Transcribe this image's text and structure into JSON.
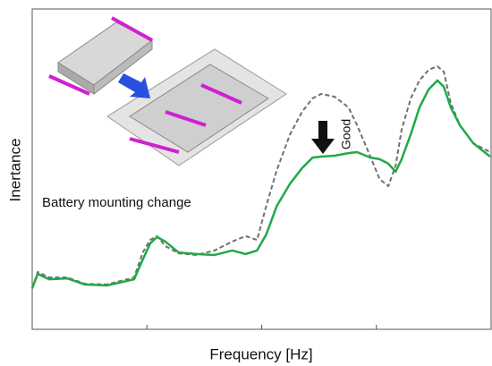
{
  "chart_data": {
    "type": "line",
    "xlabel": "Frequency [Hz]",
    "ylabel": "Inertance",
    "annotations": [
      "Battery mounting change",
      "Good"
    ],
    "x": [
      0,
      1.2,
      3.7,
      7.6,
      11.5,
      16.3,
      22.2,
      24.1,
      25.7,
      27.2,
      29.0,
      31.9,
      35.8,
      39.7,
      43.6,
      46.5,
      49.0,
      51.0,
      53.3,
      56.2,
      58.8,
      61.1,
      63.0,
      65.9,
      68.9,
      70.8,
      73.7,
      75.7,
      77.6,
      79.2,
      80.5,
      82.5,
      84.4,
      86.4,
      88.3,
      89.7,
      91.2,
      93.2,
      96.1,
      99.8
    ],
    "series": [
      {
        "color": "#22a84a",
        "dashed": false,
        "values": [
          12.8,
          17.3,
          15.6,
          15.9,
          14.0,
          13.7,
          15.6,
          21.8,
          26.8,
          28.8,
          27.4,
          24.0,
          23.5,
          23.2,
          24.6,
          23.5,
          24.6,
          29.6,
          38.5,
          45.5,
          50.3,
          53.6,
          53.9,
          54.2,
          55.0,
          55.3,
          53.6,
          53.1,
          51.7,
          49.2,
          53.1,
          60.9,
          69.3,
          74.9,
          77.7,
          75.7,
          69.3,
          63.7,
          58.1,
          53.9
        ]
      },
      {
        "color": "#707070",
        "dashed": true,
        "values": [
          12.8,
          17.9,
          16.2,
          16.2,
          14.2,
          14.0,
          16.2,
          24.0,
          27.9,
          29.1,
          26.0,
          23.7,
          23.2,
          24.6,
          27.4,
          29.1,
          27.9,
          38.5,
          49.7,
          60.9,
          67.9,
          72.1,
          73.5,
          72.6,
          69.3,
          63.7,
          53.9,
          46.9,
          44.7,
          51.1,
          62.3,
          72.1,
          77.7,
          81.0,
          82.1,
          80.4,
          70.7,
          63.7,
          58.1,
          55.3
        ]
      }
    ],
    "xlim": [
      0,
      100
    ],
    "ylim": [
      0,
      100
    ],
    "xticks": [
      25,
      50,
      75
    ]
  }
}
